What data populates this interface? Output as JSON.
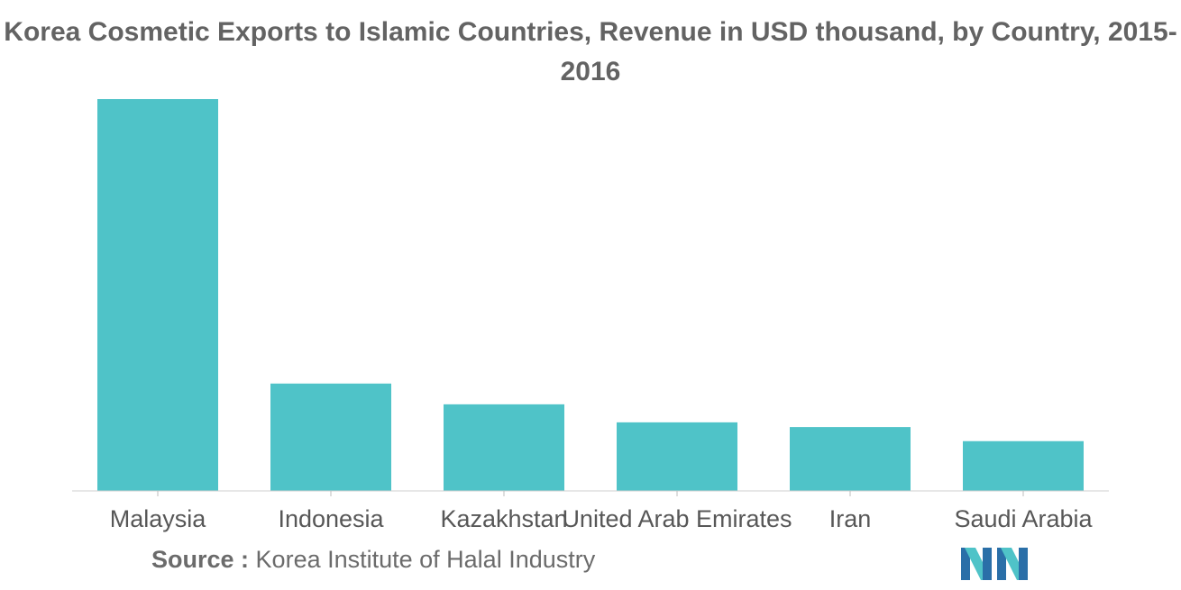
{
  "chart_data": {
    "type": "bar",
    "title": "Korea Cosmetic Exports to Islamic Countries, Revenue in USD thousand, by Country, 2015-2016",
    "categories": [
      "Malaysia",
      "Indonesia",
      "Kazakhstan",
      "United Arab Emirates",
      "Iran",
      "Saudi Arabia"
    ],
    "values": [
      100,
      27.4,
      22.1,
      17.5,
      16.3,
      12.7
    ],
    "xlabel": "",
    "ylabel": "",
    "ylim": [
      0,
      100
    ],
    "grid": false,
    "legend": "none",
    "bar_color": "#4fc3c8"
  },
  "source": {
    "label": "Source :",
    "text": "Korea Institute of Halal Industry"
  },
  "logo": {
    "icon": "mordor-intelligence-logo-icon",
    "colors": [
      "#2a6fa8",
      "#4fc3c8"
    ]
  }
}
